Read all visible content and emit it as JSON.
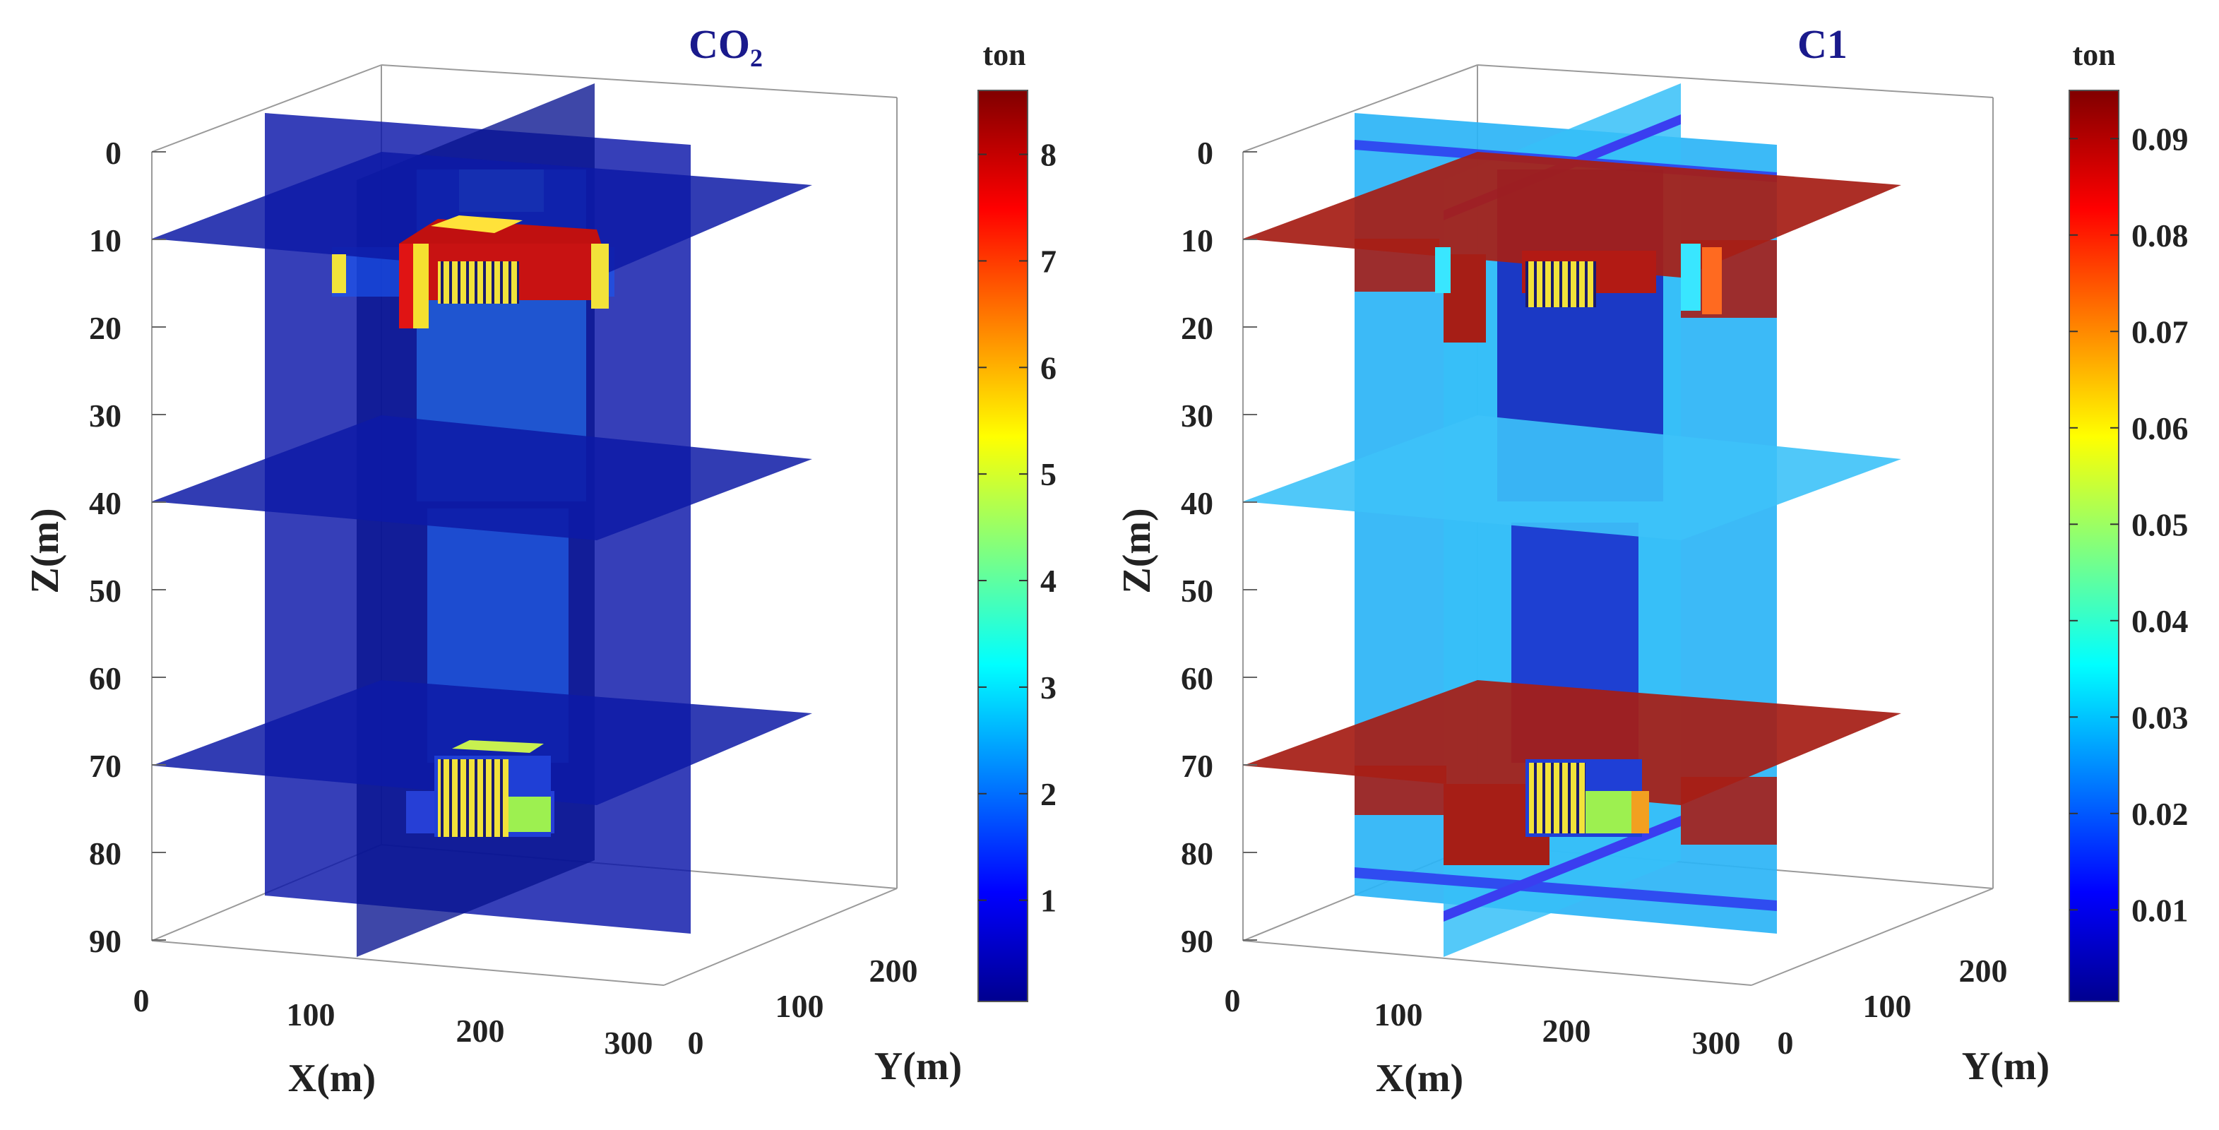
{
  "chart_data": [
    {
      "type": "heatmap",
      "subtype": "3d-volumetric-slices",
      "title_main": "CO",
      "title_sub": "2",
      "xlabel": "X(m)",
      "ylabel": "Y(m)",
      "zlabel": "Z(m)",
      "x_ticks": [
        "0",
        "100",
        "200",
        "300"
      ],
      "y_ticks": [
        "0",
        "100",
        "200"
      ],
      "z_ticks": [
        "0",
        "10",
        "20",
        "30",
        "40",
        "50",
        "60",
        "70",
        "80",
        "90"
      ],
      "colorbar_unit": "ton",
      "colorbar_ticks": [
        "1",
        "2",
        "3",
        "4",
        "5",
        "6",
        "7",
        "8"
      ],
      "colorbar_range": [
        0.05,
        8.6
      ],
      "z_slices": [
        10,
        40,
        70
      ],
      "background_level": 0.1,
      "plume_upper_level": 8.2,
      "plume_lower_level": 5.4,
      "column_level": 2.4
    },
    {
      "type": "heatmap",
      "subtype": "3d-volumetric-slices",
      "title_main": "C1",
      "title_sub": "",
      "xlabel": "X(m)",
      "ylabel": "Y(m)",
      "zlabel": "Z(m)",
      "x_ticks": [
        "0",
        "100",
        "200",
        "300"
      ],
      "y_ticks": [
        "0",
        "100",
        "200"
      ],
      "z_ticks": [
        "0",
        "10",
        "20",
        "30",
        "40",
        "50",
        "60",
        "70",
        "80",
        "90"
      ],
      "colorbar_unit": "ton",
      "colorbar_ticks": [
        "0.01",
        "0.02",
        "0.03",
        "0.04",
        "0.05",
        "0.06",
        "0.07",
        "0.08",
        "0.09"
      ],
      "colorbar_range": [
        0.0005,
        0.095
      ],
      "z_slices": [
        10,
        40,
        70
      ],
      "background_level": 0.029,
      "slice_level": 0.09,
      "plume_level": 0.005
    }
  ]
}
